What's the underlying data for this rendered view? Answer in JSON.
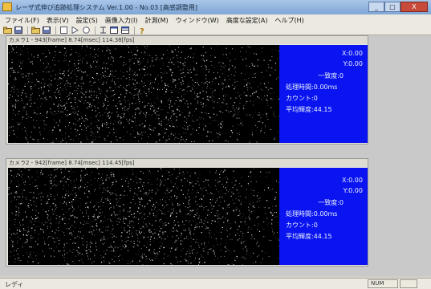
{
  "window": {
    "title": "レーザ式伸び追跡処理システム Ver.1.00 - No.03 [高感調整用]",
    "buttons": [
      "_",
      "□",
      "X"
    ]
  },
  "menubar": [
    "ファイル(F)",
    "表示(V)",
    "設定(S)",
    "画像入力(I)",
    "計測(M)",
    "ウィンドウ(W)",
    "高度な設定(A)",
    "ヘルプ(H)"
  ],
  "toolbar": {
    "icons": [
      "open-icon",
      "save-icon",
      "open2-icon",
      "save2-icon",
      "stop-icon",
      "play-icon",
      "record-icon",
      "measure-icon",
      "cascade-icon",
      "tile-icon",
      "help-icon"
    ]
  },
  "cameras": [
    {
      "title": "カメラ1 - 943[frame] 8.74[msec] 114.38[fps]",
      "x": "X:0.00",
      "y": "Y:0.00",
      "match": "一致度:0",
      "proc_time": "処理時間:0.00ms",
      "count": "カウント:0",
      "avg_brightness": "平均輝度:44.15"
    },
    {
      "title": "カメラ2 - 942[frame] 8.74[msec] 114.45[fps]",
      "x": "X:0.00",
      "y": "Y:0.00",
      "match": "一致度:0",
      "proc_time": "処理時間:0.00ms",
      "count": "カウント:0",
      "avg_brightness": "平均輝度:44.15"
    }
  ],
  "statusbar": {
    "text": "レディ",
    "num": "NUM"
  },
  "colors": {
    "info_panel": "#0a14f0",
    "workspace": "#c9c9c9"
  }
}
